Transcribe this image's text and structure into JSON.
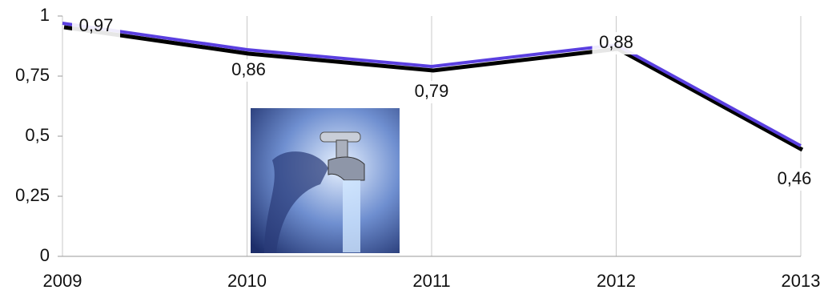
{
  "chart_data": {
    "type": "line",
    "categories": [
      "2009",
      "2010",
      "2011",
      "2012",
      "2013"
    ],
    "series": [
      {
        "color": "#5a3fe0",
        "values": [
          0.97,
          0.86,
          0.79,
          0.88,
          0.46
        ],
        "value_labels": [
          "0,97",
          "0,86",
          "0,79",
          "0,88",
          "0,46"
        ]
      }
    ],
    "ylim": [
      0,
      1
    ],
    "yticks": [
      0,
      {
        "value": 0.25,
        "label": "0,25"
      },
      {
        "value": 0.5,
        "label": "0,5"
      },
      {
        "value": 0.75,
        "label": "0,75"
      },
      1
    ],
    "grid": true
  }
}
